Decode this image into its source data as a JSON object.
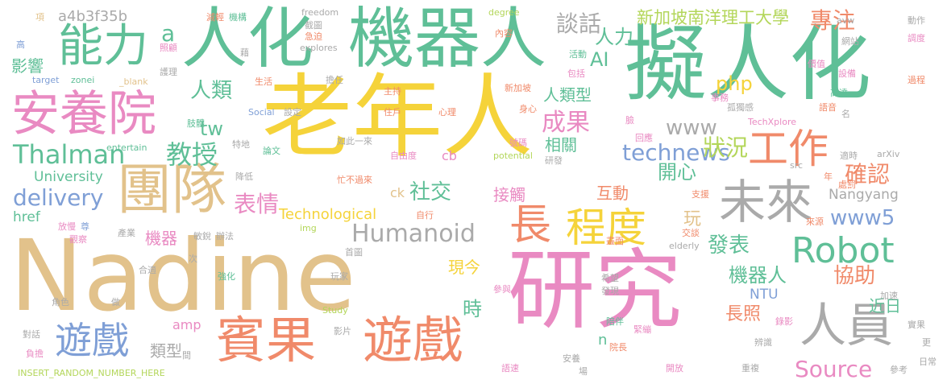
{
  "colors": {
    "gold": "#f5d33a",
    "tan": "#e2c28b",
    "pink": "#e98ac2",
    "green": "#5fbf97",
    "salmon": "#f08a6a",
    "blue": "#7f9fd6",
    "gray": "#aaaaaa",
    "lime": "#b3d65a"
  },
  "words": {
    "w001": "Nadine",
    "w002": "老年人",
    "w003": "研究",
    "w004": "擬人化",
    "w005": "機器人",
    "w006": "人化",
    "w007": "安養院",
    "w008": "團隊",
    "w009": "賓果",
    "w010": "遊戲",
    "w011": "遊戲",
    "w012": "能力",
    "w013": "人員",
    "w014": "未來",
    "w015": "工作",
    "w016": "程度",
    "w017": "Robot",
    "w018": "長",
    "w019": "Thalman",
    "w020": "教授",
    "w021": "Humanoid",
    "w022": "delivery",
    "w023": "technews",
    "w024": "Source",
    "w025": "www5",
    "w026": "成果",
    "w027": "狀況",
    "w028": "確認",
    "w029": "表情",
    "w030": "社交",
    "w031": "談話",
    "w032": "專注",
    "w033": "人力",
    "w034": "人類",
    "w035": "新加坡南洋理工大學",
    "w036": "AI",
    "w037": "php",
    "w038": "www",
    "w039": "開心",
    "w040": "發表",
    "w041": "機器人",
    "w042": "協助",
    "w043": "長照",
    "w044": "時",
    "w045": "tw",
    "w046": "影響",
    "w047": "a4b3f35b",
    "w048": "a",
    "w049": "人類型",
    "w050": "相關",
    "w051": "互動",
    "w052": "接觸",
    "w053": "類型",
    "w054": "機器",
    "w055": "玩",
    "w056": "現今",
    "w057": "近日",
    "w058": "Technological",
    "w059": "University",
    "w060": "Nangyang",
    "w061": "href",
    "w062": "ck",
    "w063": "cb",
    "w064": "amp",
    "w065": "NTU",
    "w066": "n",
    "w067": "INSERT_RANDOM_NUMBER_HERE",
    "w068": "freedom",
    "w069": "degree",
    "w070": "explores",
    "w071": "_blank",
    "w072": "target",
    "w073": "zonei",
    "w074": "Social",
    "w075": "entertain",
    "w076": "potential",
    "w077": "TechXplore",
    "w078": "arXiv",
    "w079": "src",
    "w080": "avw",
    "w081": "elderly",
    "w082": "img",
    "w083": "Study",
    "w084": "項",
    "w085": "高",
    "w086": "減輕",
    "w087": "機構",
    "w088": "截圖",
    "w089": "照顧",
    "w090": "藉",
    "w091": "急迫",
    "w092": "內容",
    "w093": "動作",
    "w094": "網站",
    "w095": "調度",
    "w096": "價值",
    "w097": "活動",
    "w098": "包括",
    "w099": "設備",
    "w100": "高達",
    "w101": "過程",
    "w102": "擔任",
    "w103": "生活",
    "w104": "主持",
    "w105": "新加坡",
    "w106": "護理",
    "w107": "住戶",
    "w108": "設定",
    "w109": "心理",
    "w110": "身心",
    "w111": "事務",
    "w112": "孤獨感",
    "w113": "語音",
    "w114": "肢體",
    "w115": "臉",
    "w116": "名",
    "w117": "論文",
    "w118": "如此一來",
    "w119": "自由度",
    "w120": "號碼",
    "w121": "特地",
    "w122": "回應",
    "w123": "適時",
    "w124": "研發",
    "w125": "降低",
    "w126": "忙不過來",
    "w127": "處罰",
    "w128": "年",
    "w129": "支援",
    "w130": "自行",
    "w131": "來源",
    "w132": "放慢",
    "w133": "尊",
    "w134": "產業",
    "w135": "敏銳",
    "w136": "辦法",
    "w137": "觀察",
    "w138": "交談",
    "w139": "畫面",
    "w140": "首圖",
    "w141": "合適",
    "w142": "次",
    "w143": "強化",
    "w144": "玩家",
    "w145": "參與",
    "w146": "希望",
    "w147": "發現",
    "w148": "錄影",
    "w149": "角色",
    "w150": "做",
    "w151": "加速",
    "w152": "實果",
    "w153": "對話",
    "w154": "影片",
    "w155": "陪伴",
    "w156": "緊繃",
    "w157": "辨識",
    "w158": "負擔",
    "w159": "間",
    "w160": "院長",
    "w161": "更",
    "w162": "安養",
    "w163": "語速",
    "w164": "場",
    "w165": "開放",
    "w166": "重複",
    "w167": "參考",
    "w168": "日常"
  }
}
